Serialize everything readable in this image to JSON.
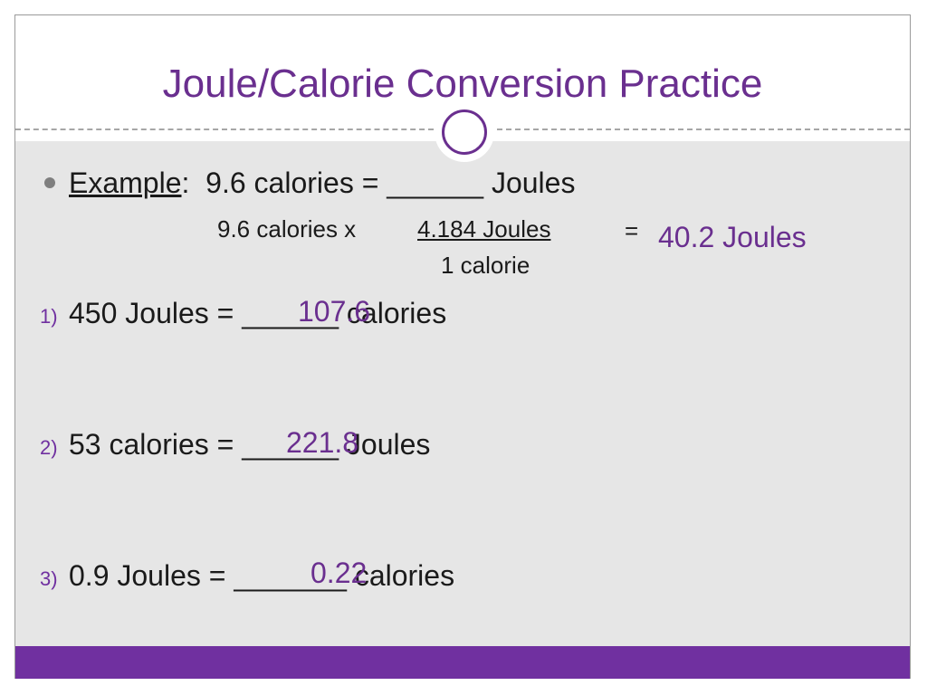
{
  "slide": {
    "title": "Joule/Calorie Conversion Practice"
  },
  "example": {
    "label": "Example",
    "colon": ":",
    "prompt": "9.6 calories = ______ Joules",
    "work_left": "9.6 calories x",
    "numerator": "4.184 Joules",
    "denominator": "1  calorie",
    "equals": "=",
    "answer": "40.2 Joules"
  },
  "problems": [
    {
      "number": "1)",
      "text_before": "450 Joules = ",
      "blank": "______",
      "text_after": " calories",
      "answer": "107.6"
    },
    {
      "number": "2)",
      "text_before": "53 calories = ",
      "blank": "______",
      "text_after": " Joules",
      "answer": "221.8"
    },
    {
      "number": "3)",
      "text_before": "0.9 Joules = ",
      "blank": "_______",
      "text_after": " calories",
      "answer": "0.22"
    }
  ],
  "colors": {
    "accent": "#6a2f8f",
    "bar": "#7030a0",
    "content_bg": "#e6e6e6"
  }
}
